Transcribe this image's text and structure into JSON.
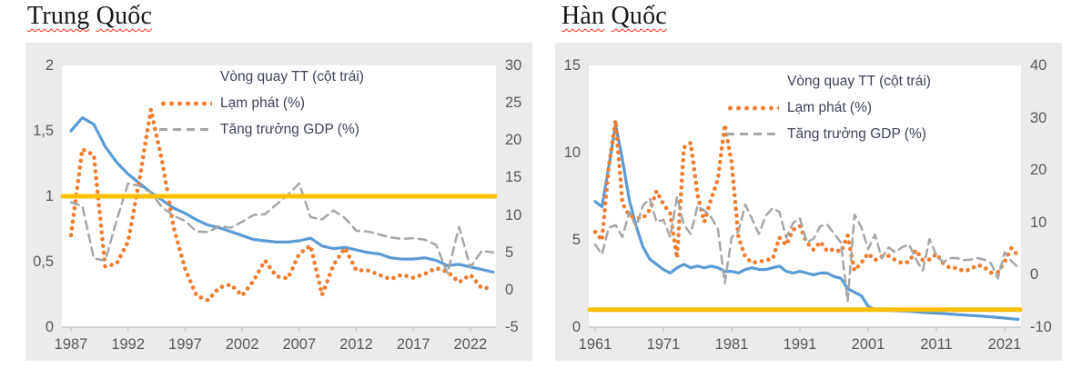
{
  "colors": {
    "velocity": "#5B9BD5",
    "inflation": "#ED7D31",
    "gdp": "#A6A6A6",
    "threshold": "#FFC000",
    "panel_bg": "#EBEBEB",
    "plot_bg": "#FFFFFF",
    "axis_line": "#BFBFBF",
    "axis_text": "#595959",
    "legend_text": "#3E4358",
    "spellcheck_underline": "#FF2A1A"
  },
  "chart_data": [
    {
      "type": "line",
      "title": "Trung Quốc",
      "title_words": [
        "Trung",
        "Quốc"
      ],
      "x": [
        1987,
        1988,
        1989,
        1990,
        1991,
        1992,
        1993,
        1994,
        1995,
        1996,
        1997,
        1998,
        1999,
        2000,
        2001,
        2002,
        2003,
        2004,
        2005,
        2006,
        2007,
        2008,
        2009,
        2010,
        2011,
        2012,
        2013,
        2014,
        2015,
        2016,
        2017,
        2018,
        2019,
        2020,
        2021,
        2022,
        2023,
        2024
      ],
      "x_tick_labels": [
        "1987",
        "1992",
        "1997",
        "2002",
        "2007",
        "2012",
        "2017",
        "2022"
      ],
      "x_tick_years": [
        1987,
        1992,
        1997,
        2002,
        2007,
        2012,
        2017,
        2022
      ],
      "left_axis": {
        "range": [
          0,
          2
        ],
        "tick_labels": [
          "2",
          "1,5",
          "1",
          "0,5",
          "0"
        ],
        "tick_values": [
          2,
          1.5,
          1,
          0.5,
          0
        ]
      },
      "right_axis": {
        "range": [
          -5,
          30
        ],
        "tick_labels": [
          "30",
          "25",
          "20",
          "15",
          "10",
          "5",
          "0",
          "-5"
        ],
        "tick_values": [
          30,
          25,
          20,
          15,
          10,
          5,
          0,
          -5
        ]
      },
      "series": [
        {
          "name": "Vòng quay TT (cột trái)",
          "axis": "left",
          "style": "solid",
          "color_key": "velocity",
          "values": [
            1.5,
            1.6,
            1.55,
            1.38,
            1.26,
            1.17,
            1.1,
            1.03,
            0.97,
            0.91,
            0.87,
            0.82,
            0.78,
            0.76,
            0.73,
            0.7,
            0.67,
            0.66,
            0.65,
            0.65,
            0.66,
            0.68,
            0.62,
            0.6,
            0.61,
            0.59,
            0.57,
            0.56,
            0.53,
            0.52,
            0.52,
            0.53,
            0.51,
            0.47,
            0.48,
            0.46,
            0.44,
            0.42
          ]
        },
        {
          "name": "Lạm phát (%)",
          "axis": "right",
          "style": "dotted",
          "color_key": "inflation",
          "values": [
            7.3,
            18.8,
            18.0,
            3.1,
            3.5,
            6.4,
            14.7,
            24.1,
            17.1,
            8.3,
            2.8,
            -0.8,
            -1.4,
            0.3,
            0.7,
            -0.8,
            1.2,
            3.9,
            1.8,
            1.5,
            4.8,
            5.9,
            -0.7,
            3.3,
            5.6,
            2.6,
            2.6,
            2.0,
            1.4,
            2.0,
            1.6,
            2.1,
            2.9,
            2.4,
            1.0,
            2.0,
            0.2,
            0.3
          ]
        },
        {
          "name": "Tăng trưởng GDP (%)",
          "axis": "right",
          "style": "dashed",
          "color_key": "gdp",
          "values": [
            11.7,
            11.2,
            4.2,
            3.9,
            9.3,
            14.2,
            13.9,
            13.0,
            11.0,
            9.9,
            9.2,
            7.8,
            7.7,
            8.5,
            8.3,
            9.1,
            10.0,
            10.1,
            11.4,
            12.7,
            14.2,
            9.7,
            9.4,
            10.6,
            9.6,
            7.9,
            7.8,
            7.4,
            7.0,
            6.8,
            6.9,
            6.7,
            6.0,
            2.2,
            8.4,
            3.0,
            5.2,
            5.0
          ]
        }
      ],
      "threshold_line": {
        "axis": "left",
        "value": 1,
        "color_key": "threshold"
      },
      "grid": "off",
      "legend_position": "top-center"
    },
    {
      "type": "line",
      "title": "Hàn Quốc",
      "title_words": [
        "Hàn",
        "Quốc"
      ],
      "x": [
        1961,
        1962,
        1963,
        1964,
        1965,
        1966,
        1967,
        1968,
        1969,
        1970,
        1971,
        1972,
        1973,
        1974,
        1975,
        1976,
        1977,
        1978,
        1979,
        1980,
        1981,
        1982,
        1983,
        1984,
        1985,
        1986,
        1987,
        1988,
        1989,
        1990,
        1991,
        1992,
        1993,
        1994,
        1995,
        1996,
        1997,
        1998,
        1999,
        2000,
        2001,
        2002,
        2003,
        2004,
        2005,
        2006,
        2007,
        2008,
        2009,
        2010,
        2011,
        2012,
        2013,
        2014,
        2015,
        2016,
        2017,
        2018,
        2019,
        2020,
        2021,
        2022,
        2023
      ],
      "x_tick_labels": [
        "1961",
        "1971",
        "1981",
        "1991",
        "2001",
        "2011",
        "2021"
      ],
      "x_tick_years": [
        1961,
        1971,
        1981,
        1991,
        2001,
        2011,
        2021
      ],
      "left_axis": {
        "range": [
          0,
          15
        ],
        "tick_labels": [
          "15",
          "10",
          "5",
          "0"
        ],
        "tick_values": [
          15,
          10,
          5,
          0
        ]
      },
      "right_axis": {
        "range": [
          -10,
          40
        ],
        "tick_labels": [
          "40",
          "30",
          "20",
          "10",
          "0",
          "-10"
        ],
        "tick_values": [
          40,
          30,
          20,
          10,
          0,
          -10
        ]
      },
      "series": [
        {
          "name": "Vòng quay TT (cột trái)",
          "axis": "left",
          "style": "solid",
          "color_key": "velocity",
          "values": [
            7.2,
            6.9,
            9.2,
            11.6,
            9.6,
            7.3,
            5.8,
            4.6,
            3.9,
            3.6,
            3.3,
            3.1,
            3.4,
            3.6,
            3.4,
            3.5,
            3.4,
            3.5,
            3.4,
            3.2,
            3.2,
            3.1,
            3.3,
            3.4,
            3.3,
            3.3,
            3.4,
            3.5,
            3.2,
            3.1,
            3.2,
            3.1,
            3.0,
            3.1,
            3.1,
            2.9,
            2.8,
            2.2,
            2.0,
            1.8,
            1.2,
            1.0,
            0.98,
            0.96,
            0.94,
            0.92,
            0.9,
            0.88,
            0.84,
            0.82,
            0.8,
            0.78,
            0.75,
            0.72,
            0.7,
            0.67,
            0.65,
            0.62,
            0.59,
            0.55,
            0.52,
            0.48,
            0.45
          ]
        },
        {
          "name": "Lạm phát (%)",
          "axis": "right",
          "style": "dotted",
          "color_key": "inflation",
          "values": [
            8.2,
            6.6,
            20.7,
            29.5,
            13.6,
            11.3,
            10.9,
            10.8,
            12.4,
            16.0,
            13.5,
            11.7,
            3.2,
            24.3,
            25.2,
            15.3,
            10.1,
            14.5,
            18.3,
            28.7,
            21.4,
            7.2,
            3.4,
            2.3,
            2.5,
            2.8,
            3.0,
            7.1,
            5.7,
            8.6,
            9.3,
            6.2,
            4.8,
            6.3,
            4.5,
            4.9,
            4.4,
            7.5,
            0.8,
            2.3,
            4.1,
            2.8,
            3.5,
            3.6,
            2.8,
            2.2,
            2.5,
            4.7,
            2.8,
            2.9,
            4.0,
            2.2,
            1.3,
            1.3,
            0.7,
            1.0,
            1.9,
            1.5,
            0.4,
            0.5,
            2.5,
            5.1,
            3.6
          ]
        },
        {
          "name": "Tăng trưởng GDP (%)",
          "axis": "right",
          "style": "dashed",
          "color_key": "gdp",
          "values": [
            5.8,
            3.9,
            9.0,
            9.5,
            7.2,
            12.0,
            9.1,
            13.2,
            14.6,
            10.1,
            10.5,
            7.2,
            14.9,
            9.5,
            7.8,
            13.2,
            12.3,
            11.0,
            8.7,
            -1.6,
            7.2,
            8.3,
            13.4,
            10.6,
            7.8,
            11.3,
            12.7,
            12.0,
            7.1,
            9.9,
            10.8,
            6.2,
            6.9,
            9.3,
            9.6,
            7.9,
            6.2,
            -5.1,
            11.5,
            9.1,
            4.9,
            7.7,
            3.1,
            5.2,
            4.3,
            5.3,
            5.8,
            3.0,
            0.8,
            6.8,
            3.7,
            2.4,
            3.2,
            3.2,
            2.8,
            2.9,
            3.2,
            2.9,
            2.2,
            -0.7,
            4.3,
            2.6,
            1.4
          ]
        }
      ],
      "threshold_line": {
        "axis": "left",
        "value": 1,
        "color_key": "threshold"
      },
      "grid": "off",
      "legend_position": "top-center"
    }
  ]
}
